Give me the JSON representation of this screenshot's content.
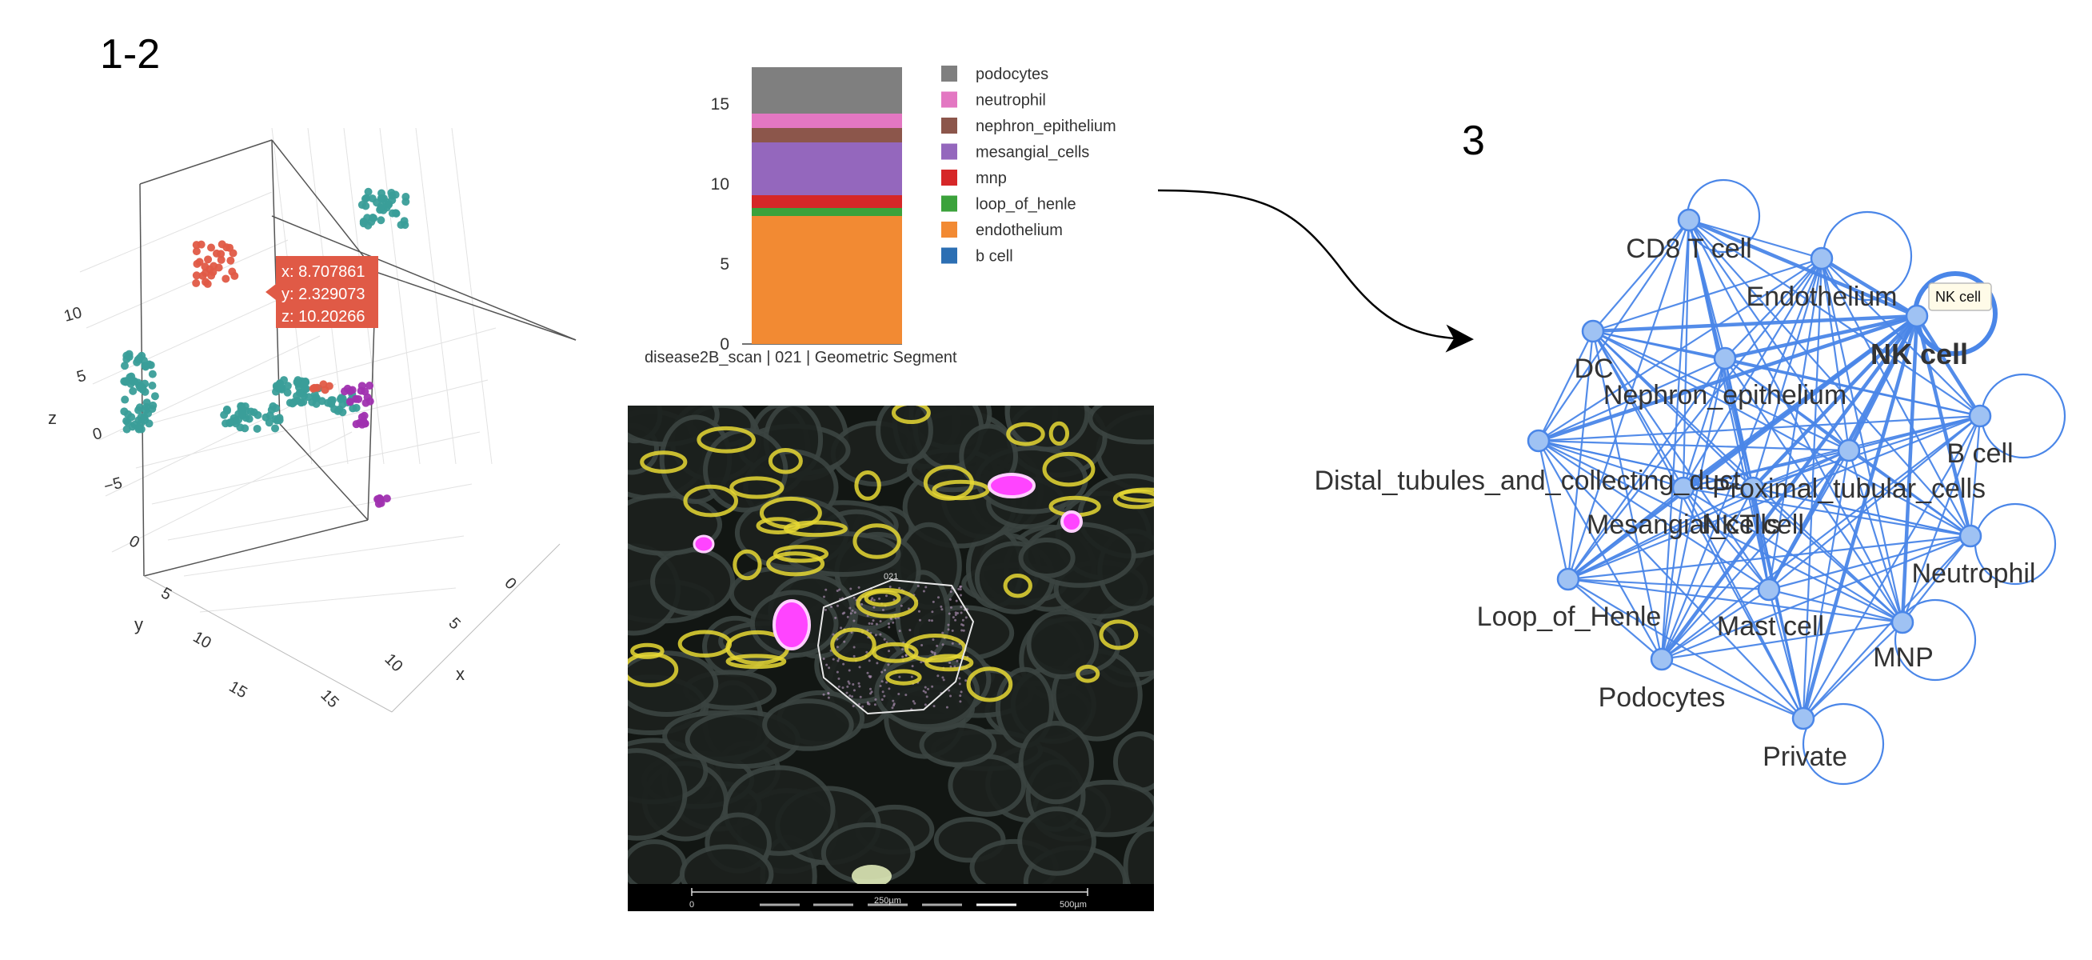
{
  "panels": {
    "left_label": "1-2",
    "right_label": "3"
  },
  "scatter3d": {
    "axis_names": {
      "x": "x",
      "y": "y",
      "z": "z"
    },
    "z_ticks": [
      "10",
      "5",
      "0",
      "−5"
    ],
    "y_ticks": [
      "0",
      "5",
      "10",
      "15"
    ],
    "x_ticks": [
      "0",
      "5",
      "10",
      "15"
    ],
    "colors": {
      "teal": "#3a9e99",
      "red": "#e05a46",
      "purple": "#a032b0"
    },
    "tooltip": {
      "x": "x: 8.707861",
      "y": "y: 2.329073",
      "z": "z: 10.20266"
    }
  },
  "chart_data": {
    "type": "bar",
    "categories": [
      "disease2B_scan | 021 | Geometric Segment"
    ],
    "ylim": [
      0,
      17.5
    ],
    "y_ticks": [
      0,
      5,
      10,
      15
    ],
    "series": [
      {
        "name": "b cell",
        "values": [
          0
        ],
        "color": "#2c6fb3"
      },
      {
        "name": "endothelium",
        "values": [
          8.0
        ],
        "color": "#f28a33"
      },
      {
        "name": "loop_of_henle",
        "values": [
          0.5
        ],
        "color": "#3ba23b"
      },
      {
        "name": "mnp",
        "values": [
          0.8
        ],
        "color": "#d62728"
      },
      {
        "name": "mesangial_cells",
        "values": [
          3.3
        ],
        "color": "#9467bd"
      },
      {
        "name": "nephron_epithelium",
        "values": [
          0.9
        ],
        "color": "#8c564b"
      },
      {
        "name": "neutrophil",
        "values": [
          0.9
        ],
        "color": "#e377c2"
      },
      {
        "name": "podocytes",
        "values": [
          2.9
        ],
        "color": "#7f7f7f"
      }
    ],
    "legend_order": [
      "podocytes",
      "neutrophil",
      "nephron_epithelium",
      "mesangial_cells",
      "mnp",
      "loop_of_henle",
      "endothelium",
      "b cell"
    ]
  },
  "microscopy": {
    "region_label": "021",
    "scale_labels": {
      "start": "0",
      "mid": "250µm",
      "end": "500µm"
    }
  },
  "network": {
    "edge_color": "#4a86e8",
    "tooltip": "NK cell",
    "nodes": [
      {
        "id": "cd8",
        "label": "CD8 T cell"
      },
      {
        "id": "endo",
        "label": "Endothelium"
      },
      {
        "id": "nk",
        "label": "NK cell",
        "bold": true
      },
      {
        "id": "dc",
        "label": "DC"
      },
      {
        "id": "nephron",
        "label": "Nephron_epithelium"
      },
      {
        "id": "bcell",
        "label": "B cell"
      },
      {
        "id": "distal",
        "label": "Distal_tubules_and_collecting_duct"
      },
      {
        "id": "proximal",
        "label": "Proximal_tubular_cells"
      },
      {
        "id": "nkt",
        "label": "NKT cell"
      },
      {
        "id": "mesangial",
        "label": "Mesangial_cells"
      },
      {
        "id": "neutrophil",
        "label": "Neutrophil"
      },
      {
        "id": "loop",
        "label": "Loop_of_Henle"
      },
      {
        "id": "mast",
        "label": "Mast cell"
      },
      {
        "id": "mnp",
        "label": "MNP"
      },
      {
        "id": "podocytes",
        "label": "Podocytes"
      },
      {
        "id": "private",
        "label": "Private"
      }
    ]
  }
}
